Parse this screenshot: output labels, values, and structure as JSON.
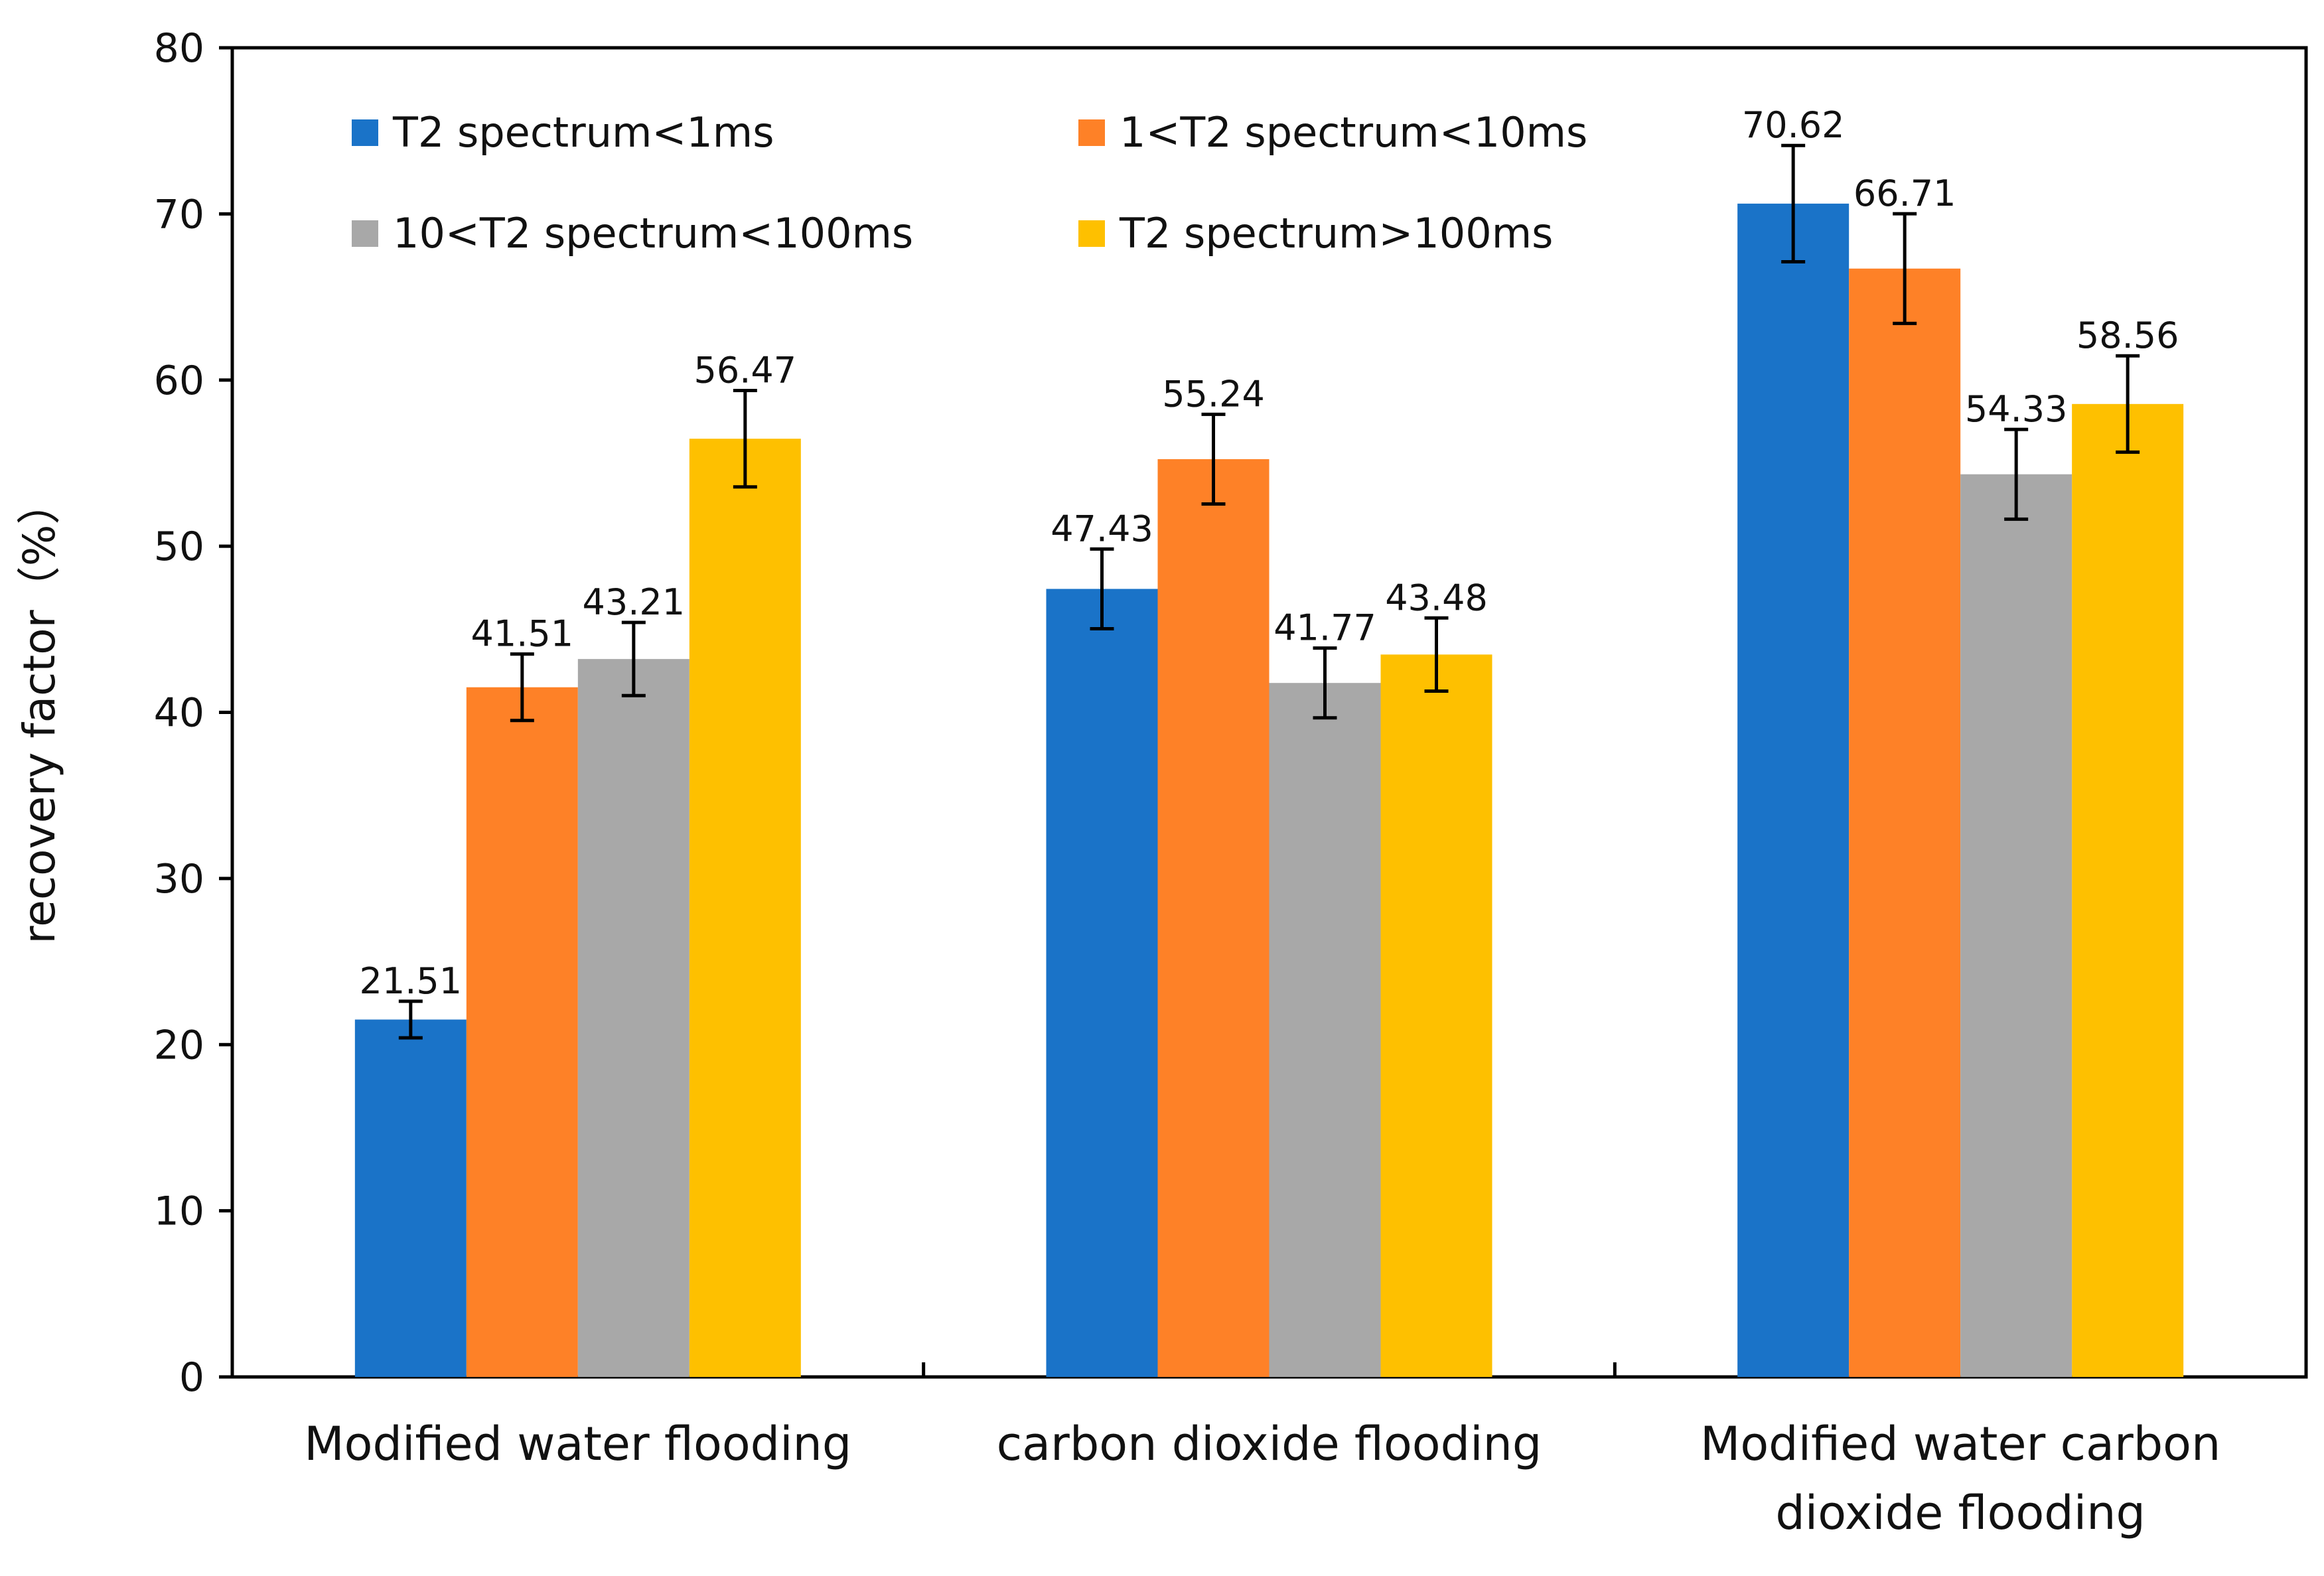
{
  "chart_data": {
    "type": "bar",
    "title": "",
    "xlabel": "",
    "ylabel": "recovery factor（%）",
    "ylim": [
      0,
      80
    ],
    "yticks": [
      0,
      10,
      20,
      30,
      40,
      50,
      60,
      70,
      80
    ],
    "categories": [
      [
        "Modified water flooding"
      ],
      [
        "carbon dioxide flooding"
      ],
      [
        "Modified water carbon",
        "dioxide flooding"
      ]
    ],
    "series": [
      {
        "name": "T2 spectrum<1ms",
        "color": "#1a73c8",
        "values": [
          21.51,
          47.43,
          70.62
        ],
        "errors": [
          1.1,
          2.4,
          3.5
        ],
        "labels": [
          "21.51",
          "47.43",
          "70.62"
        ]
      },
      {
        "name": "1<T2 spectrum<10ms",
        "color": "#fe8127",
        "values": [
          41.51,
          55.24,
          66.71
        ],
        "errors": [
          2.0,
          2.7,
          3.3
        ],
        "labels": [
          "41.51",
          "55.24",
          "66.71"
        ]
      },
      {
        "name": "10<T2 spectrum<100ms",
        "color": "#a8a8a8",
        "values": [
          43.21,
          41.77,
          54.33
        ],
        "errors": [
          2.2,
          2.1,
          2.7
        ],
        "labels": [
          "43.21",
          "41.77",
          "54.33"
        ]
      },
      {
        "name": "T2 spectrum>100ms",
        "color": "#fec000",
        "values": [
          56.47,
          43.48,
          58.56
        ],
        "errors": [
          2.9,
          2.2,
          2.9
        ],
        "labels": [
          "56.47",
          "43.48",
          "58.56"
        ]
      }
    ],
    "grid": false,
    "legend_position": "top-left inside, 2 columns"
  }
}
